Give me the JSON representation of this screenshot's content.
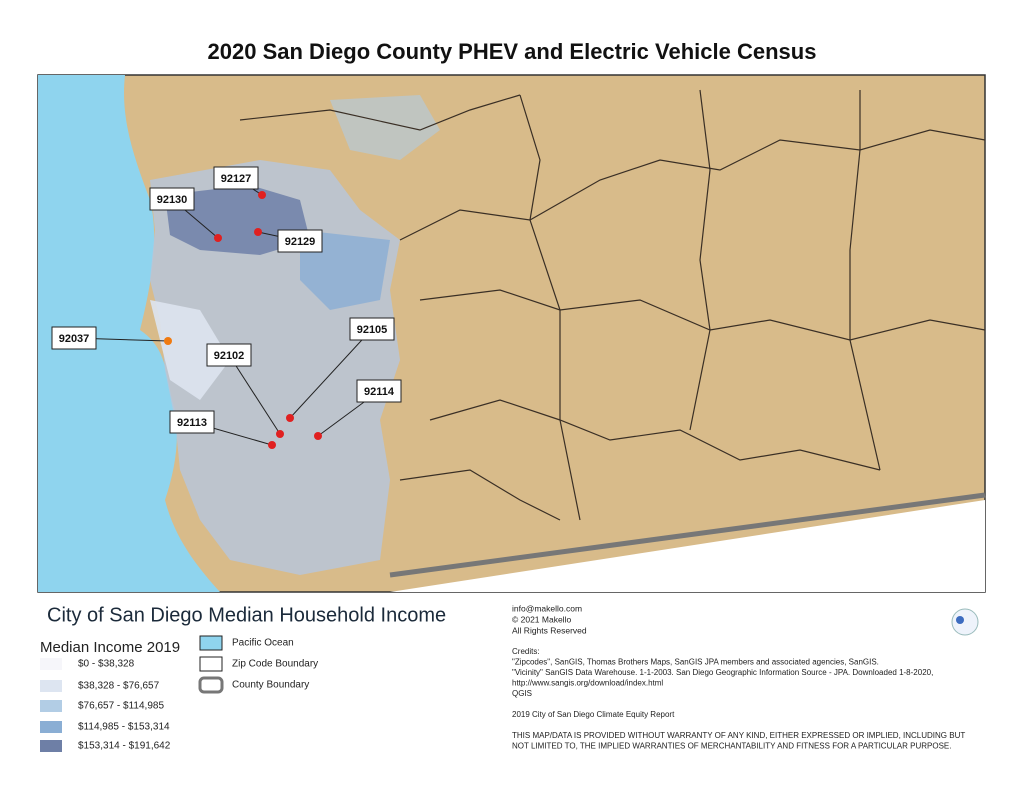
{
  "title": "2020 San Diego County PHEV and Electric Vehicle Census",
  "map": {
    "zip_labels": [
      "92127",
      "92130",
      "92129",
      "92037",
      "92105",
      "92102",
      "92114",
      "92113"
    ]
  },
  "legend": {
    "title": "City of San Diego Median Household Income",
    "subtitle": "Median Income 2019",
    "income_classes": [
      "$0 - $38,328",
      "$38,328 - $76,657",
      "$76,657 - $114,985",
      "$114,985 - $153,314",
      "$153,314 - $191,642"
    ],
    "layers": [
      "Pacific Ocean",
      "Zip Code Boundary",
      "County Boundary"
    ]
  },
  "credits": {
    "contact": [
      "info@makello.com",
      "© 2021 Makello",
      "All Rights Reserved"
    ],
    "lines": [
      "Credits:",
      "\"Zipcodes\", SanGIS, Thomas Brothers Maps, SanGIS JPA members and associated agencies, SanGIS.",
      "\"Vicinity\" SanGIS Data Warehouse. 1-1-2003. San Diego Geographic Information Source - JPA. Downloaded 1-8-2020,",
      "http://www.sangis.org/download/index.html",
      " QGIS",
      "",
      "2019 City of San Diego Climate Equity Report",
      "",
      "THIS MAP/DATA IS PROVIDED WITHOUT WARRANTY OF ANY KIND, EITHER EXPRESSED OR IMPLIED, INCLUDING BUT",
      "NOT LIMITED TO, THE IMPLIED WARRANTIES OF MERCHANTABILITY AND FITNESS FOR A PARTICULAR PURPOSE."
    ]
  }
}
